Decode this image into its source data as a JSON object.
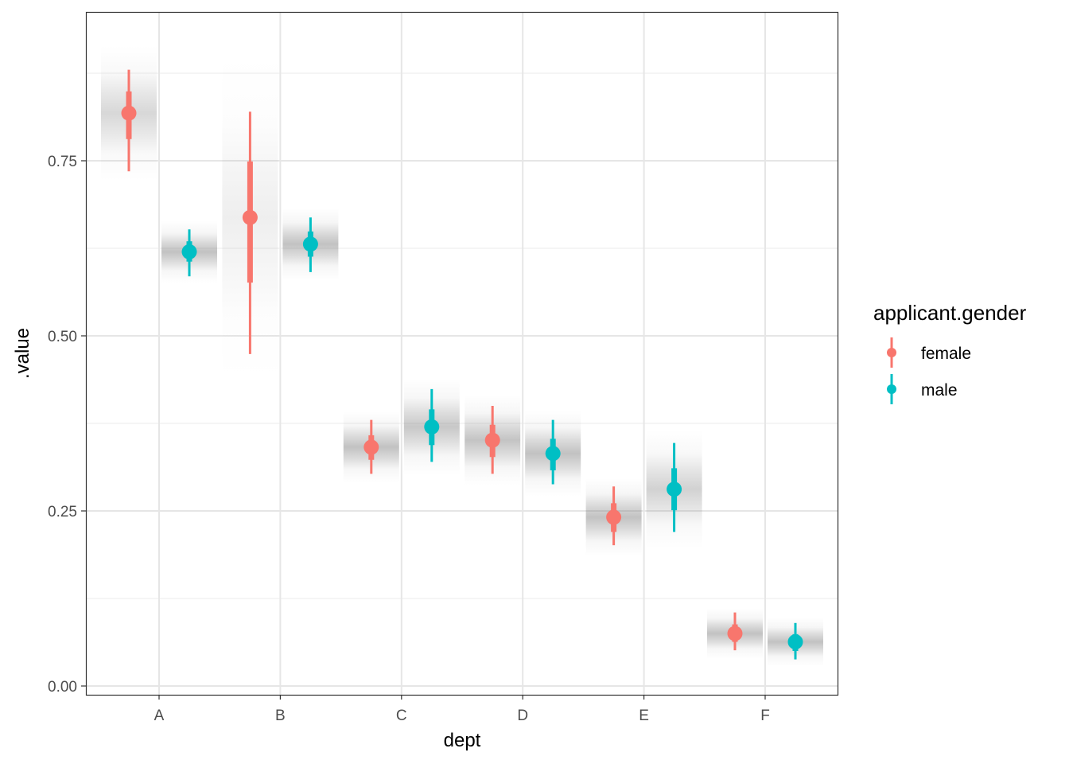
{
  "chart_data": {
    "type": "pointinterval",
    "title": "",
    "xlabel": "dept",
    "ylabel": ".value",
    "ylim": [
      -0.0125,
      0.9625
    ],
    "yticks": [
      0,
      0.25,
      0.5,
      0.75
    ],
    "ytick_labels": [
      "0.00",
      "0.25",
      "0.50",
      "0.75"
    ],
    "categories": [
      "A",
      "B",
      "C",
      "D",
      "E",
      "F"
    ],
    "grid": true,
    "legend": {
      "title": "applicant.gender",
      "position": "right"
    },
    "series": [
      {
        "name": "female",
        "color": "#F8766D",
        "values": [
          0.818,
          0.669,
          0.341,
          0.351,
          0.241,
          0.075
        ],
        "inner": [
          [
            0.781,
            0.849
          ],
          [
            0.576,
            0.749
          ],
          [
            0.323,
            0.358
          ],
          [
            0.327,
            0.373
          ],
          [
            0.22,
            0.261
          ],
          [
            0.063,
            0.088
          ]
        ],
        "outer": [
          [
            0.735,
            0.88
          ],
          [
            0.474,
            0.82
          ],
          [
            0.303,
            0.38
          ],
          [
            0.303,
            0.4
          ],
          [
            0.201,
            0.285
          ],
          [
            0.051,
            0.105
          ]
        ]
      },
      {
        "name": "male",
        "color": "#00BFC4",
        "values": [
          0.62,
          0.631,
          0.37,
          0.332,
          0.281,
          0.063
        ],
        "inner": [
          [
            0.606,
            0.635
          ],
          [
            0.613,
            0.649
          ],
          [
            0.344,
            0.395
          ],
          [
            0.308,
            0.353
          ],
          [
            0.251,
            0.311
          ],
          [
            0.05,
            0.074
          ]
        ],
        "outer": [
          [
            0.585,
            0.652
          ],
          [
            0.591,
            0.669
          ],
          [
            0.32,
            0.424
          ],
          [
            0.288,
            0.38
          ],
          [
            0.22,
            0.347
          ],
          [
            0.038,
            0.09
          ]
        ]
      }
    ]
  }
}
